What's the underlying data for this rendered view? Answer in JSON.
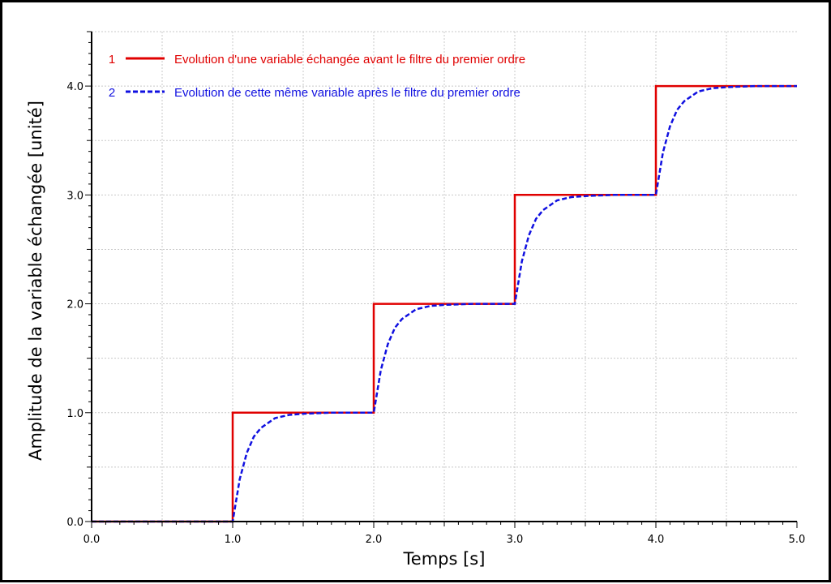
{
  "chart_data": {
    "type": "line",
    "title": "",
    "xlabel": "Temps [s]",
    "ylabel": "Amplitude de la variable échangée [unité]",
    "xlim": [
      0,
      5
    ],
    "ylim": [
      0,
      4.5
    ],
    "xticks": [
      "0.0",
      "1.0",
      "2.0",
      "3.0",
      "4.0",
      "5.0"
    ],
    "yticks": [
      "0.0",
      "1.0",
      "2.0",
      "3.0",
      "4.0"
    ],
    "grid": true,
    "legend_position": "top-left",
    "series": [
      {
        "index": "1",
        "name": "Evolution d'une variable échangée avant le filtre du premier ordre",
        "color": "#e00000",
        "style": "solid",
        "x": [
          0,
          1,
          1,
          2,
          2,
          3,
          3,
          4,
          4,
          5
        ],
        "y": [
          0,
          0,
          1,
          1,
          2,
          2,
          3,
          3,
          4,
          4
        ]
      },
      {
        "index": "2",
        "name": "Evolution de cette même variable après le filtre du premier ordre",
        "color": "#1010e0",
        "style": "dashed",
        "x": [
          0,
          1,
          1.05,
          1.1,
          1.15,
          1.2,
          1.3,
          1.4,
          1.5,
          1.7,
          2,
          2.05,
          2.1,
          2.15,
          2.2,
          2.3,
          2.4,
          2.5,
          2.7,
          3,
          3.05,
          3.1,
          3.15,
          3.2,
          3.3,
          3.4,
          3.5,
          3.7,
          4,
          4.05,
          4.1,
          4.15,
          4.2,
          4.3,
          4.4,
          4.5,
          4.7,
          5
        ],
        "y": [
          0,
          0,
          0.39,
          0.63,
          0.78,
          0.86,
          0.95,
          0.98,
          0.99,
          1.0,
          1.0,
          1.39,
          1.63,
          1.78,
          1.86,
          1.95,
          1.98,
          1.99,
          2.0,
          2.0,
          2.39,
          2.63,
          2.78,
          2.86,
          2.95,
          2.98,
          2.99,
          3.0,
          3.0,
          3.39,
          3.63,
          3.78,
          3.86,
          3.95,
          3.98,
          3.99,
          4.0,
          4.0
        ]
      }
    ]
  }
}
